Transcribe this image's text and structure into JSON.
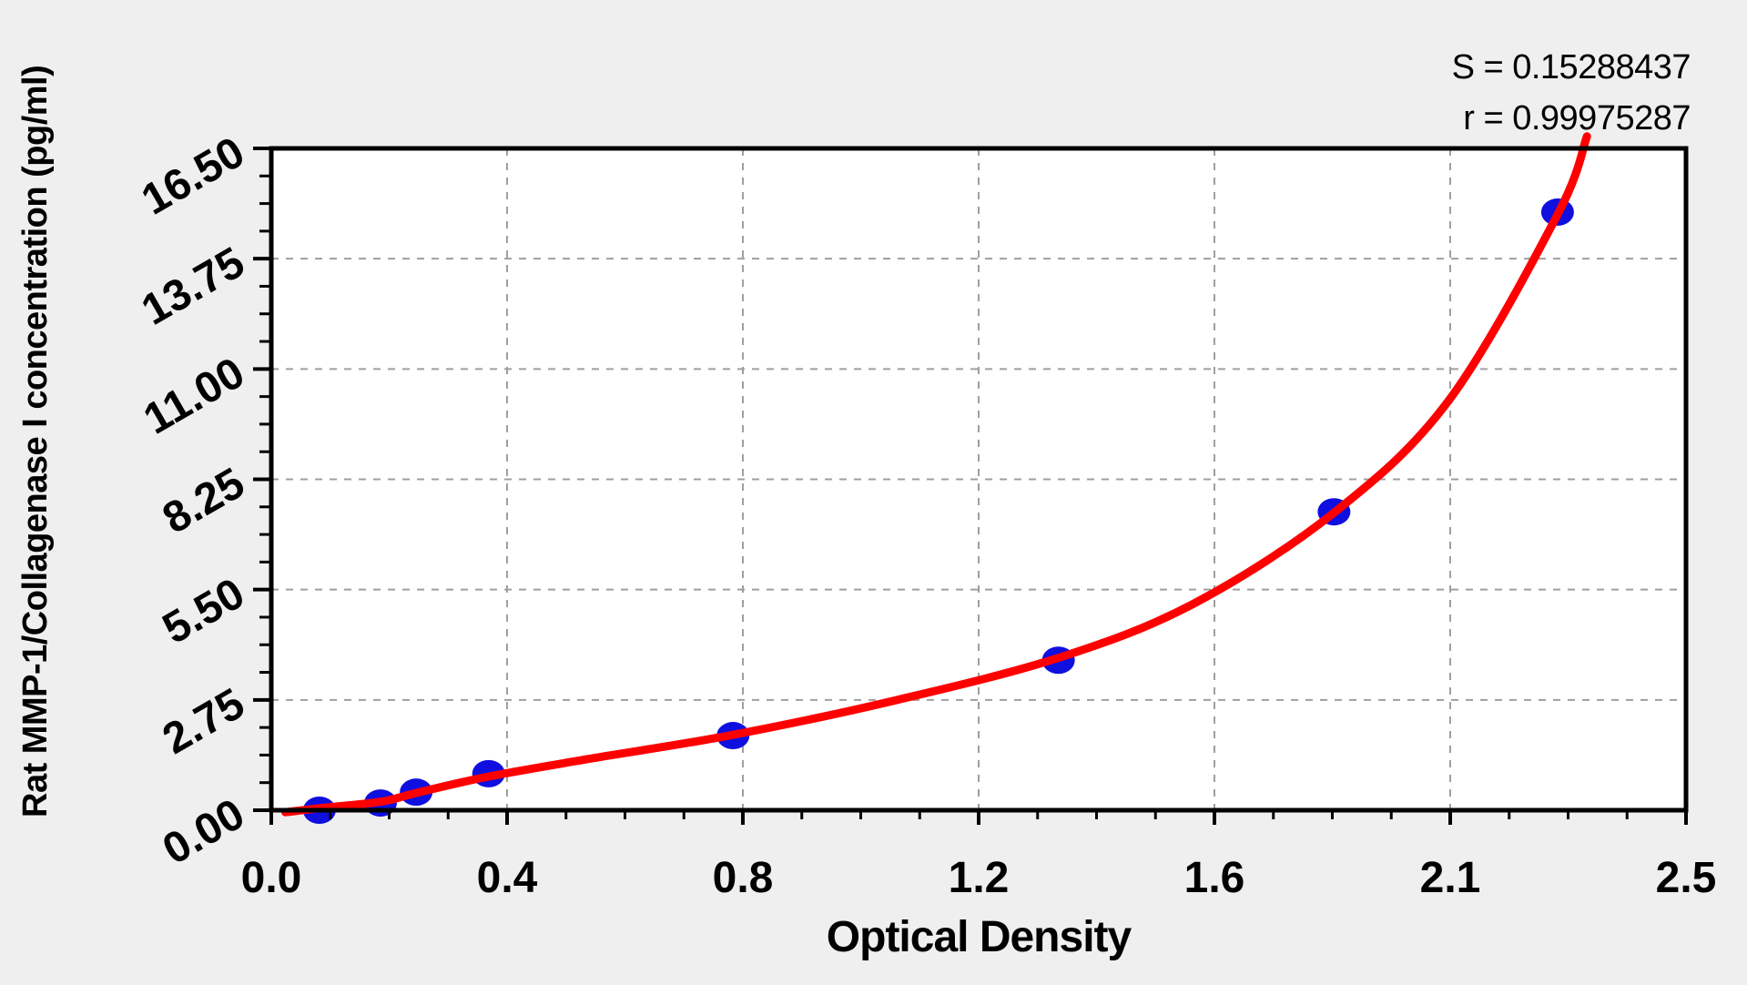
{
  "chart_data": {
    "type": "scatter",
    "title": "",
    "xlabel": "Optical Density",
    "ylabel": "Rat MMP-1/Collagenase I concentration (pg/ml)",
    "stats": {
      "s_label": "S = 0.15288437",
      "r_label": "r = 0.99975287"
    },
    "x_axis": {
      "min": 0,
      "max": 2.5,
      "tick_labels": [
        "0.0",
        "0.4",
        "0.8",
        "1.2",
        "1.6",
        "2.1",
        "2.5"
      ],
      "minor_ticks_per_interval": 3
    },
    "y_axis": {
      "min": 0,
      "max": 16.5,
      "tick_labels": [
        "0.00",
        "2.75",
        "5.50",
        "8.25",
        "11.00",
        "13.75",
        "16.50"
      ],
      "minor_ticks_per_interval": 3
    },
    "grid": true,
    "legend_position": "none",
    "series": [
      {
        "name": "standard-points",
        "type": "scatter",
        "points": [
          {
            "od": 0.085,
            "conc": 0.0
          },
          {
            "od": 0.193,
            "conc": 0.18
          },
          {
            "od": 0.256,
            "conc": 0.45
          },
          {
            "od": 0.384,
            "conc": 0.91
          },
          {
            "od": 0.816,
            "conc": 1.86
          },
          {
            "od": 1.391,
            "conc": 3.74
          },
          {
            "od": 1.878,
            "conc": 7.44
          },
          {
            "od": 2.273,
            "conc": 14.91
          }
        ]
      },
      {
        "name": "fitted-curve",
        "type": "line",
        "points": [
          {
            "od": 0.025,
            "conc": -0.05
          },
          {
            "od": 0.085,
            "conc": 0.05
          },
          {
            "od": 0.193,
            "conc": 0.21
          },
          {
            "od": 0.256,
            "conc": 0.43
          },
          {
            "od": 0.384,
            "conc": 0.84
          },
          {
            "od": 0.57,
            "conc": 1.3
          },
          {
            "od": 0.816,
            "conc": 1.88
          },
          {
            "od": 1.1,
            "conc": 2.73
          },
          {
            "od": 1.391,
            "conc": 3.8
          },
          {
            "od": 1.63,
            "conc": 5.15
          },
          {
            "od": 1.878,
            "conc": 7.42
          },
          {
            "od": 2.08,
            "conc": 10.2
          },
          {
            "od": 2.273,
            "conc": 14.85
          },
          {
            "od": 2.325,
            "conc": 16.8
          }
        ]
      }
    ],
    "colors": {
      "curve": "#ff0000",
      "points": "#0f0fe0",
      "grid": "#9f9f9f",
      "axis": "#000000",
      "page_bg": "#efefef",
      "plot_bg": "#ffffff",
      "text": "#000000"
    }
  }
}
